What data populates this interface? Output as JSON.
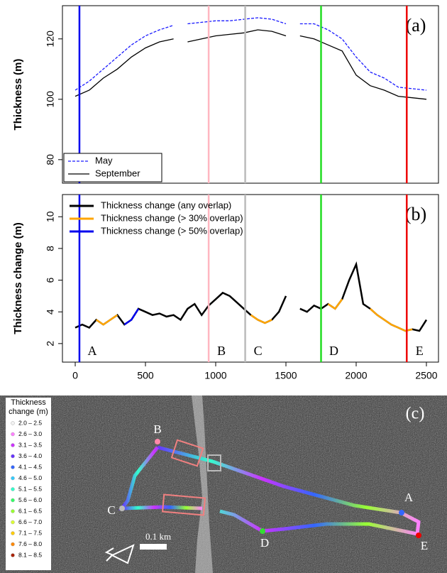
{
  "chart_data": [
    {
      "type": "line",
      "panel_label": "(a)",
      "y_label": "Thickness (m)",
      "x": [
        0,
        100,
        200,
        300,
        400,
        500,
        600,
        700,
        750,
        800,
        900,
        1000,
        1100,
        1200,
        1300,
        1400,
        1500,
        1550,
        1600,
        1700,
        1800,
        1900,
        2000,
        2100,
        2200,
        2300,
        2400,
        2500
      ],
      "series": [
        {
          "name": "May",
          "color": "#1a1aff",
          "dash": true,
          "values": [
            103,
            106,
            110,
            114,
            118,
            121,
            123,
            124.5,
            null,
            125,
            125.5,
            126,
            126,
            126.5,
            127,
            126.5,
            125,
            null,
            125,
            125,
            123,
            120,
            114,
            109,
            107,
            104,
            103.5,
            103
          ]
        },
        {
          "name": "September",
          "color": "#000000",
          "dash": false,
          "values": [
            101,
            103,
            107,
            110,
            114,
            117,
            119,
            120,
            null,
            119,
            120,
            121,
            121.5,
            122,
            123,
            122.5,
            121,
            null,
            121,
            120,
            118,
            116,
            108,
            104.5,
            103,
            101,
            100.5,
            100
          ]
        }
      ],
      "xlim": [
        -91,
        2586
      ],
      "ylim": [
        72.2,
        131
      ],
      "yticks": [
        80,
        100,
        120
      ],
      "vlines": [
        {
          "x": 30,
          "color": "#0000ee"
        },
        {
          "x": 950,
          "color": "#ffb6c1"
        },
        {
          "x": 1210,
          "color": "#bbbbbb"
        },
        {
          "x": 1750,
          "color": "#22dd22"
        },
        {
          "x": 2360,
          "color": "#ee0000"
        }
      ],
      "legend": "bottom-left"
    },
    {
      "type": "line",
      "panel_label": "(b)",
      "y_label": "Thickness change (m)",
      "x": [
        0,
        50,
        100,
        150,
        200,
        250,
        300,
        350,
        400,
        450,
        500,
        550,
        600,
        650,
        700,
        750,
        800,
        850,
        900,
        950,
        1000,
        1050,
        1100,
        1150,
        1200,
        1250,
        1300,
        1350,
        1400,
        1450,
        1500,
        1550,
        1600,
        1650,
        1700,
        1750,
        1800,
        1850,
        1900,
        1950,
        2000,
        2050,
        2100,
        2150,
        2200,
        2250,
        2300,
        2350,
        2400,
        2450,
        2500
      ],
      "series": [
        {
          "name": "Thickness change (any overlap)",
          "color": "#000000",
          "values": [
            3,
            3.2,
            3,
            3.5,
            3.2,
            3.5,
            3.8,
            3.2,
            3.5,
            4.2,
            4,
            3.8,
            3.9,
            3.7,
            3.8,
            3.5,
            4.2,
            4.5,
            3.8,
            4.4,
            4.8,
            5.2,
            5,
            4.6,
            4.2,
            3.8,
            3.5,
            3.3,
            3.5,
            4,
            5,
            null,
            4.2,
            4,
            4.4,
            4.2,
            4.5,
            4.2,
            4.8,
            6,
            7,
            4.5,
            4.2,
            3.8,
            3.5,
            3.2,
            3,
            2.8,
            2.9,
            2.8,
            3.5
          ]
        },
        {
          "name": "Thickness change (> 30% overlap)",
          "color": "#ffa500",
          "values": [
            null,
            null,
            null,
            3.5,
            3.2,
            3.5,
            3.8,
            null,
            null,
            null,
            null,
            null,
            null,
            null,
            null,
            null,
            null,
            null,
            null,
            null,
            null,
            null,
            null,
            null,
            null,
            3.8,
            3.5,
            3.3,
            3.5,
            null,
            null,
            null,
            null,
            null,
            null,
            null,
            4.5,
            4.2,
            4.8,
            null,
            null,
            null,
            4.2,
            3.8,
            3.5,
            3.2,
            3,
            2.8,
            2.9,
            null,
            null
          ]
        },
        {
          "name": "Thickness change (> 50% overlap)",
          "color": "#0000ee",
          "values": [
            null,
            null,
            null,
            null,
            null,
            null,
            null,
            3.2,
            3.5,
            4.2,
            null,
            null,
            null,
            null,
            null,
            null,
            null,
            null,
            3.8,
            null,
            null,
            null,
            null,
            null,
            null,
            null,
            null,
            null,
            null,
            null,
            null,
            null,
            null,
            null,
            null,
            null,
            null,
            null,
            null,
            null,
            null,
            null,
            null,
            null,
            null,
            null,
            null,
            null,
            null,
            null,
            null
          ]
        }
      ],
      "xlim": [
        -91,
        2586
      ],
      "ylim": [
        0.83,
        11.4
      ],
      "yticks": [
        2,
        4,
        6,
        8,
        10
      ],
      "xticks": [
        0,
        500,
        1000,
        1500,
        2000,
        2500
      ],
      "vlines": [
        {
          "x": 30,
          "color": "#0000ee",
          "label": "A"
        },
        {
          "x": 950,
          "color": "#ffb6c1",
          "label": "B"
        },
        {
          "x": 1210,
          "color": "#bbbbbb",
          "label": "C"
        },
        {
          "x": 1750,
          "color": "#22dd22",
          "label": "D"
        },
        {
          "x": 2360,
          "color": "#ee0000",
          "label": "E"
        }
      ],
      "legend": "top-left"
    }
  ],
  "map": {
    "panel_label": "(c)",
    "legend_title": "Thickness change (m)",
    "scale": "0.1 km",
    "legend": [
      {
        "label": "2.0 – 2.5",
        "color": "#f2f2f2"
      },
      {
        "label": "2.6 – 3.0",
        "color": "#ff80ff"
      },
      {
        "label": "3.1 – 3.5",
        "color": "#cc33ff"
      },
      {
        "label": "3.6 – 4.0",
        "color": "#6633ff"
      },
      {
        "label": "4.1 – 4.5",
        "color": "#3366ff"
      },
      {
        "label": "4.6 – 5.0",
        "color": "#33ccff"
      },
      {
        "label": "5.1 – 5.5",
        "color": "#33ffcc"
      },
      {
        "label": "5.6 – 6.0",
        "color": "#33ff66"
      },
      {
        "label": "6.1 – 6.5",
        "color": "#99ff33"
      },
      {
        "label": "6.6 – 7.0",
        "color": "#ddff33"
      },
      {
        "label": "7.1 – 7.5",
        "color": "#ffcc00"
      },
      {
        "label": "7.6 – 8.0",
        "color": "#ff8800"
      },
      {
        "label": "8.1 – 8.5",
        "color": "#aa2200"
      }
    ],
    "points": [
      "A",
      "B",
      "C",
      "D",
      "E"
    ]
  }
}
